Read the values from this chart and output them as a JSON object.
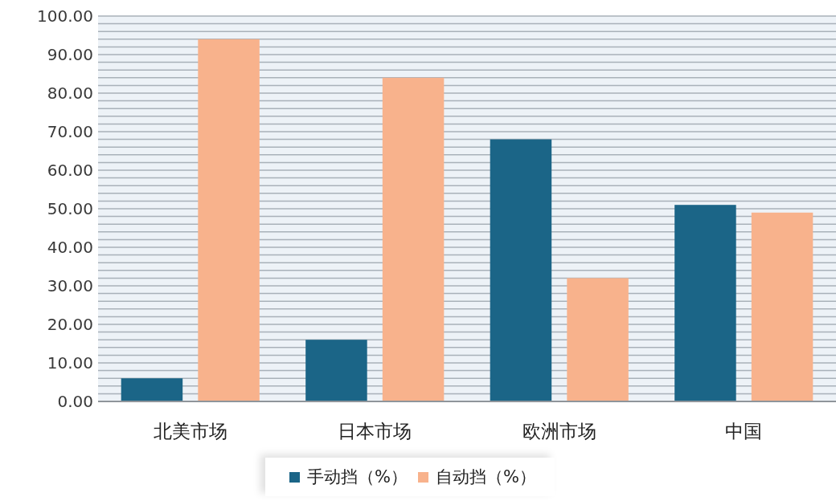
{
  "chart_data": {
    "type": "bar",
    "categories": [
      "北美市场",
      "日本市场",
      "欧洲市场",
      "中国"
    ],
    "series": [
      {
        "name": "手动挡（%）",
        "color": "#1b6587",
        "values": [
          6,
          16,
          68,
          51
        ]
      },
      {
        "name": "自动挡（%）",
        "color": "#f8b28c",
        "values": [
          94,
          84,
          32,
          49
        ]
      }
    ],
    "ylim": [
      0,
      100
    ],
    "yticks": [
      {
        "value": 0,
        "label": "0.00"
      },
      {
        "value": 2,
        "label": null
      },
      {
        "value": 4,
        "label": null
      },
      {
        "value": 6,
        "label": null
      },
      {
        "value": 8,
        "label": null
      },
      {
        "value": 10,
        "label": "10.00"
      },
      {
        "value": 12,
        "label": null
      },
      {
        "value": 14,
        "label": null
      },
      {
        "value": 16,
        "label": null
      },
      {
        "value": 18,
        "label": null
      },
      {
        "value": 20,
        "label": "20.00"
      },
      {
        "value": 22,
        "label": null
      },
      {
        "value": 24,
        "label": null
      },
      {
        "value": 26,
        "label": null
      },
      {
        "value": 28,
        "label": null
      },
      {
        "value": 30,
        "label": "30.00"
      },
      {
        "value": 32,
        "label": null
      },
      {
        "value": 34,
        "label": null
      },
      {
        "value": 36,
        "label": null
      },
      {
        "value": 38,
        "label": null
      },
      {
        "value": 40,
        "label": "40.00"
      },
      {
        "value": 42,
        "label": null
      },
      {
        "value": 44,
        "label": null
      },
      {
        "value": 46,
        "label": null
      },
      {
        "value": 48,
        "label": null
      },
      {
        "value": 50,
        "label": "50.00"
      },
      {
        "value": 52,
        "label": null
      },
      {
        "value": 54,
        "label": null
      },
      {
        "value": 56,
        "label": null
      },
      {
        "value": 58,
        "label": null
      },
      {
        "value": 60,
        "label": "60.00"
      },
      {
        "value": 62,
        "label": null
      },
      {
        "value": 64,
        "label": null
      },
      {
        "value": 66,
        "label": null
      },
      {
        "value": 68,
        "label": null
      },
      {
        "value": 70,
        "label": "70.00"
      },
      {
        "value": 72,
        "label": null
      },
      {
        "value": 74,
        "label": null
      },
      {
        "value": 76,
        "label": null
      },
      {
        "value": 78,
        "label": null
      },
      {
        "value": 80,
        "label": "80.00"
      },
      {
        "value": 82,
        "label": null
      },
      {
        "value": 84,
        "label": null
      },
      {
        "value": 86,
        "label": null
      },
      {
        "value": 88,
        "label": null
      },
      {
        "value": 90,
        "label": "90.00"
      },
      {
        "value": 92,
        "label": null
      },
      {
        "value": 94,
        "label": null
      },
      {
        "value": 96,
        "label": null
      },
      {
        "value": 98,
        "label": null
      },
      {
        "value": 100,
        "label": "100.00"
      }
    ],
    "grid": "y",
    "legend": "bottom"
  }
}
